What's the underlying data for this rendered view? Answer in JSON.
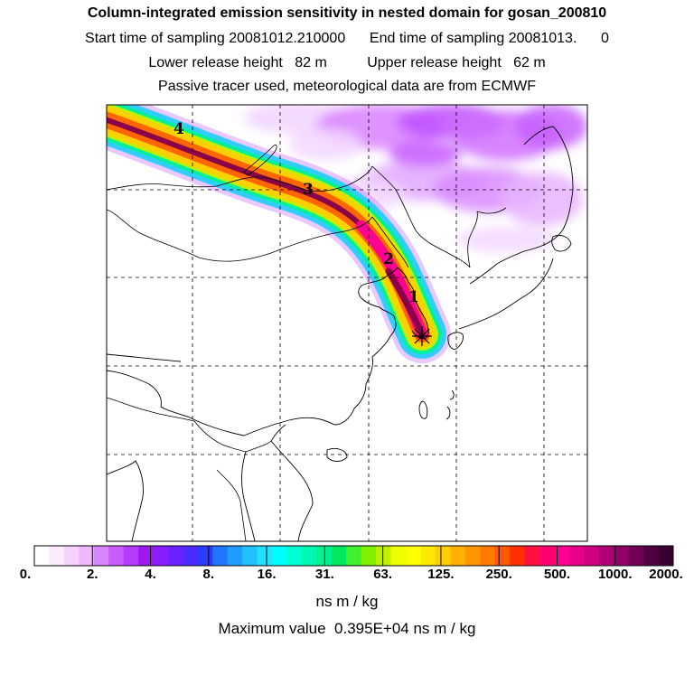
{
  "header": {
    "title": "Column-integrated emission sensitivity in nested domain for gosan_200810",
    "sampling_line": "Start time of sampling 20081012.210000      End time of sampling 20081013.      0",
    "release_line": "Lower release height   82 m          Upper release height   62 m",
    "tracer_line": "Passive tracer used, meteorological data are from ECMWF"
  },
  "map": {
    "day_markers": [
      "4",
      "3",
      "2",
      "1"
    ],
    "receptor_symbol": "asterisk",
    "colors": {
      "plume_outer": "#c060ff",
      "plume_low": "#33ccff",
      "plume_mid": "#ffd000",
      "plume_high": "#ff6600",
      "plume_max": "#8a004a",
      "background_sensitivity": "#e9b8ff"
    }
  },
  "colorbar": {
    "tick_labels": [
      "0.",
      "2.",
      "4.",
      "8.",
      "16.",
      "31.",
      "63.",
      "125.",
      "250.",
      "500.",
      "1000.",
      "2000."
    ],
    "colors": [
      "#ffffff",
      "#fdeaff",
      "#f8d2ff",
      "#f0b8ff",
      "#d985ff",
      "#c75cff",
      "#b43cff",
      "#a018f0",
      "#8c1cff",
      "#6a20ff",
      "#4a2cff",
      "#2c3cff",
      "#1f78ff",
      "#1f9cff",
      "#22c0ff",
      "#22e0ff",
      "#00ffff",
      "#00ffd0",
      "#00f8b0",
      "#00f090",
      "#00e860",
      "#40f030",
      "#80f000",
      "#c0f000",
      "#f0ff00",
      "#ffff00",
      "#ffe800",
      "#ffd000",
      "#ffb000",
      "#ff9600",
      "#ff7800",
      "#ff5a00",
      "#ff3000",
      "#ff1040",
      "#ff0070",
      "#ff0090",
      "#e8008a",
      "#cc0080",
      "#b00078",
      "#900068",
      "#700058",
      "#500040",
      "#380030"
    ],
    "units": "ns m / kg",
    "max_value_line": "Maximum value  0.395E+04 ns m / kg"
  }
}
